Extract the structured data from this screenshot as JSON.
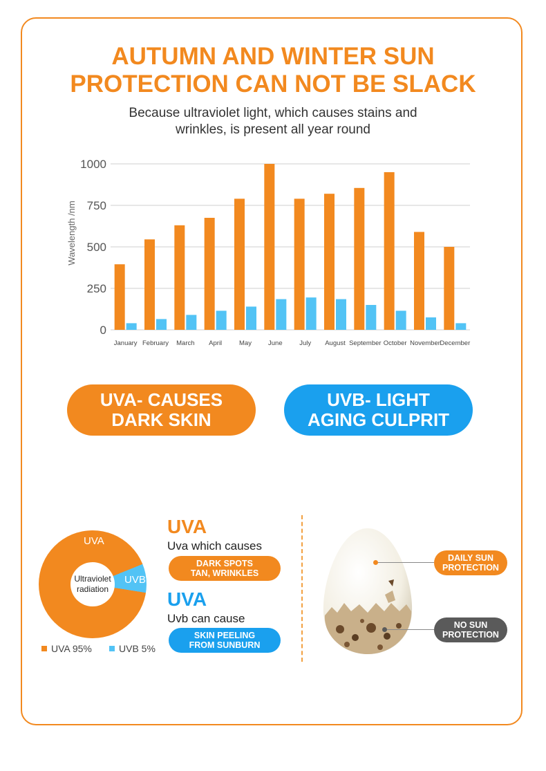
{
  "header": {
    "title_line1": "AUTUMN AND WINTER SUN",
    "title_line2": "PROTECTION CAN NOT BE SLACK",
    "subtitle_line1": "Because ultraviolet light, which causes stains and",
    "subtitle_line2": "wrinkles, is present all year round"
  },
  "colors": {
    "accent_orange": "#f2891f",
    "accent_blue": "#1aa0ee",
    "light_blue": "#52c3f5",
    "dark_gray": "#5a5a5a"
  },
  "chart_data": [
    {
      "type": "bar",
      "ylabel": "Wavelength /nm",
      "ylim": [
        0,
        1000
      ],
      "yticks": [
        0,
        250,
        500,
        750,
        1000
      ],
      "grid": true,
      "categories": [
        "January",
        "February",
        "March",
        "April",
        "May",
        "June",
        "July",
        "August",
        "September",
        "October",
        "November",
        "December"
      ],
      "series": [
        {
          "color": "#f2891f",
          "values": [
            395,
            545,
            630,
            675,
            790,
            1000,
            790,
            820,
            855,
            950,
            590,
            500
          ]
        },
        {
          "color": "#52c3f5",
          "values": [
            40,
            65,
            90,
            115,
            140,
            185,
            195,
            185,
            150,
            115,
            75,
            40
          ]
        }
      ]
    },
    {
      "type": "pie",
      "center_label": [
        "Ultraviolet",
        "radiation"
      ],
      "slices": [
        {
          "label": "UVA",
          "value": 95,
          "color": "#f2891f"
        },
        {
          "label": "UVB",
          "value": 5,
          "color": "#52c3f5"
        }
      ],
      "legend": [
        "UVA 95%",
        "UVB 5%"
      ]
    }
  ],
  "pills": {
    "uva_line1": "UVA- CAUSES",
    "uva_line2": "DARK SKIN",
    "uvb_line1": "UVB- LIGHT",
    "uvb_line2": "AGING CULPRIT"
  },
  "donut": {
    "center_line1": "Ultraviolet",
    "center_line2": "radiation",
    "uva_label": "UVA",
    "uvb_label": "UVB",
    "legend_uva": "UVA 95%",
    "legend_uvb": "UVB 5%"
  },
  "uva_info": {
    "heading": "UVA",
    "text": "Uva which causes",
    "tag_line1": "DARK SPOTS",
    "tag_line2": "TAN, WRINKLES"
  },
  "uvb_info": {
    "heading": "UVA",
    "text": "Uvb can cause",
    "tag_line1": "SKIN PEELING",
    "tag_line2": "FROM SUNBURN"
  },
  "egg": {
    "daily_line1": "DAILY SUN",
    "daily_line2": "PROTECTION",
    "none_line1": "NO SUN",
    "none_line2": "PROTECTION"
  }
}
